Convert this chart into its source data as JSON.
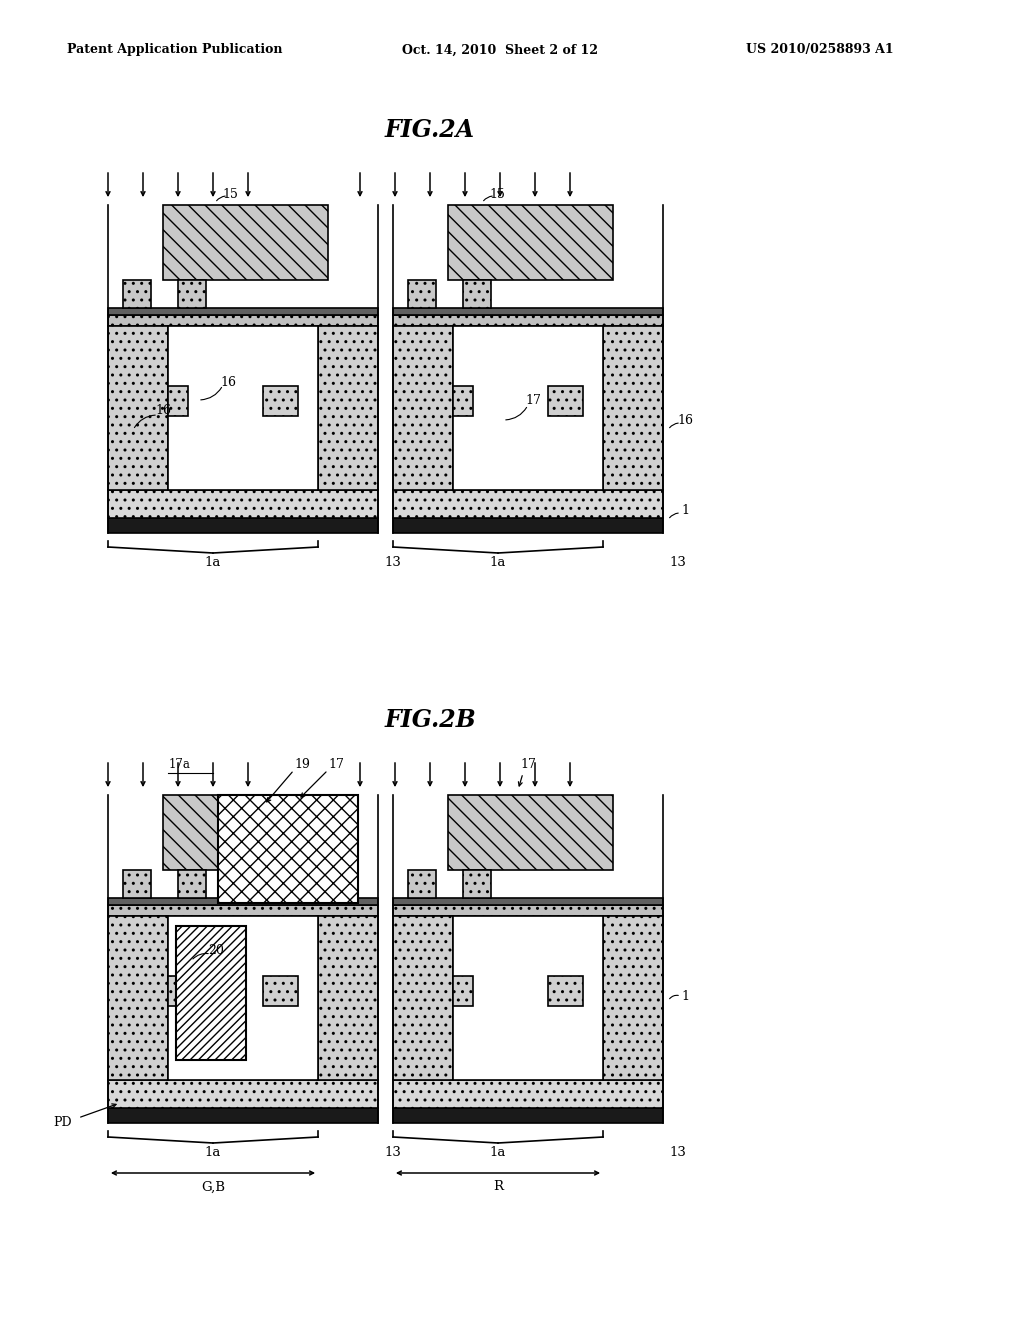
{
  "bg_color": "#ffffff",
  "header_left": "Patent Application Publication",
  "header_center": "Oct. 14, 2010  Sheet 2 of 12",
  "header_right": "US 2010/0258893 A1",
  "fig2a_title": "FIG.2A",
  "fig2b_title": "FIG.2B"
}
